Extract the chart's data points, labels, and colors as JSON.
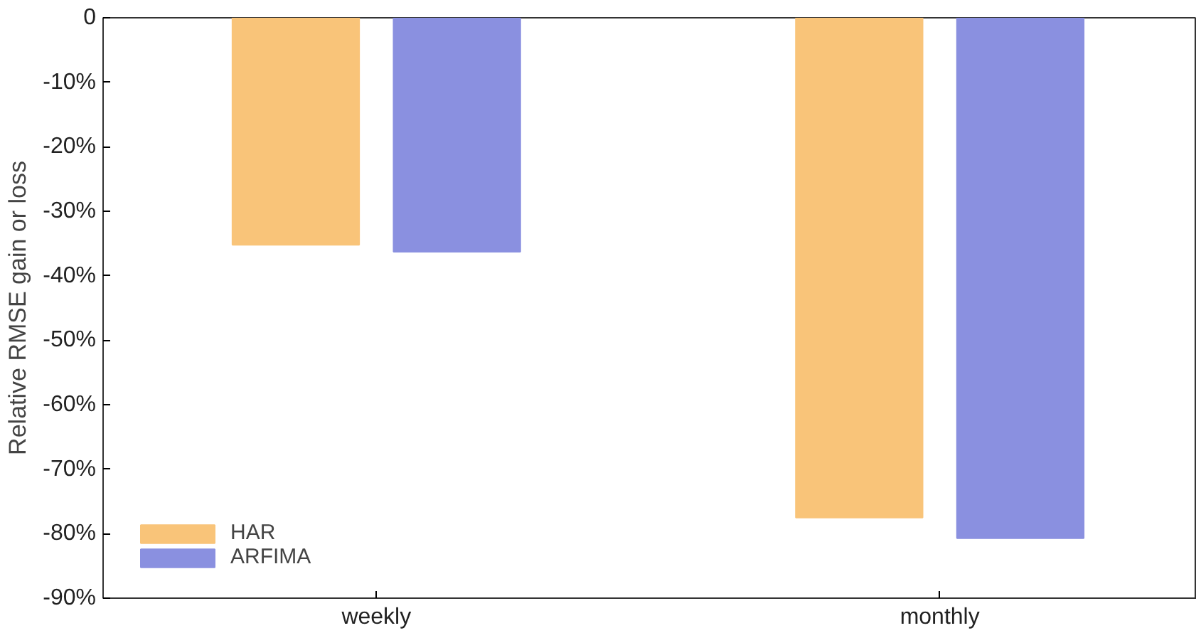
{
  "chart_data": {
    "type": "bar",
    "ylabel": "Relative RMSE gain or loss",
    "categories": [
      "weekly",
      "monthly"
    ],
    "series": [
      {
        "name": "HAR",
        "color": "#f9c479",
        "values": [
          -35.2,
          -77.5
        ]
      },
      {
        "name": "ARFIMA",
        "color": "#8a90e0",
        "values": [
          -36.3,
          -80.7
        ]
      }
    ],
    "ylim": [
      -90,
      0
    ],
    "yticks": [
      {
        "value": -90,
        "label": "-90%"
      },
      {
        "value": -80,
        "label": "-80%"
      },
      {
        "value": -70,
        "label": "-70%"
      },
      {
        "value": -60,
        "label": "-60%"
      },
      {
        "value": -50,
        "label": "-50%"
      },
      {
        "value": -40,
        "label": "-40%"
      },
      {
        "value": -30,
        "label": "-30%"
      },
      {
        "value": -20,
        "label": "-20%"
      },
      {
        "value": -10,
        "label": "-10%"
      },
      0
    ],
    "grid": false,
    "legend": "bottom left"
  }
}
